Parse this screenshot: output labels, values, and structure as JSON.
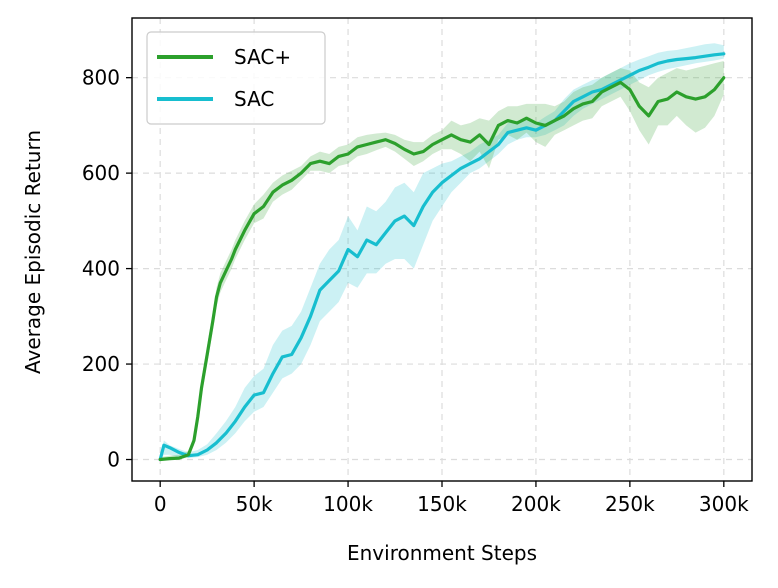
{
  "chart_data": {
    "type": "line",
    "title": "",
    "xlabel": "Environment Steps",
    "ylabel": "Average Episodic Return",
    "xlim": [
      -15000,
      315000
    ],
    "ylim": [
      -45,
      925
    ],
    "grid": true,
    "legend_position": "upper-left",
    "xticks": [
      0,
      50000,
      100000,
      150000,
      200000,
      250000,
      300000
    ],
    "xtick_labels": [
      "0",
      "50k",
      "100k",
      "150k",
      "200k",
      "250k",
      "300k"
    ],
    "yticks": [
      0,
      200,
      400,
      600,
      800
    ],
    "ytick_labels": [
      "0",
      "200",
      "400",
      "600",
      "800"
    ],
    "series": [
      {
        "name": "SAC",
        "color": "#17becf",
        "x": [
          0,
          2000,
          5000,
          10000,
          15000,
          20000,
          25000,
          30000,
          35000,
          40000,
          45000,
          50000,
          55000,
          60000,
          65000,
          70000,
          75000,
          80000,
          85000,
          90000,
          95000,
          100000,
          105000,
          110000,
          115000,
          120000,
          125000,
          130000,
          135000,
          140000,
          145000,
          150000,
          155000,
          160000,
          165000,
          170000,
          175000,
          180000,
          185000,
          190000,
          195000,
          200000,
          205000,
          210000,
          215000,
          220000,
          225000,
          230000,
          235000,
          240000,
          245000,
          250000,
          255000,
          260000,
          265000,
          270000,
          275000,
          280000,
          285000,
          290000,
          295000,
          300000
        ],
        "values": [
          0,
          30,
          25,
          15,
          8,
          10,
          20,
          35,
          55,
          80,
          110,
          135,
          140,
          180,
          215,
          220,
          255,
          300,
          355,
          375,
          395,
          440,
          425,
          460,
          450,
          475,
          500,
          510,
          490,
          530,
          560,
          580,
          595,
          610,
          620,
          630,
          645,
          660,
          685,
          690,
          695,
          690,
          700,
          710,
          730,
          750,
          760,
          770,
          775,
          785,
          795,
          805,
          815,
          822,
          830,
          835,
          838,
          840,
          842,
          845,
          848,
          850
        ],
        "band_low": [
          0,
          10,
          10,
          5,
          3,
          5,
          10,
          20,
          35,
          55,
          80,
          100,
          110,
          140,
          170,
          180,
          200,
          240,
          290,
          310,
          330,
          370,
          360,
          390,
          390,
          410,
          420,
          420,
          400,
          450,
          500,
          530,
          560,
          580,
          600,
          610,
          625,
          640,
          660,
          670,
          675,
          675,
          680,
          690,
          700,
          720,
          735,
          745,
          755,
          765,
          775,
          785,
          795,
          805,
          812,
          818,
          822,
          826,
          830,
          833,
          836,
          840
        ],
        "band_high": [
          5,
          40,
          30,
          22,
          15,
          20,
          32,
          55,
          80,
          110,
          150,
          175,
          190,
          240,
          270,
          280,
          310,
          360,
          410,
          440,
          460,
          510,
          480,
          530,
          520,
          540,
          570,
          580,
          560,
          600,
          610,
          620,
          625,
          635,
          645,
          660,
          670,
          680,
          705,
          710,
          715,
          705,
          718,
          730,
          755,
          775,
          785,
          795,
          800,
          810,
          820,
          830,
          838,
          845,
          852,
          856,
          858,
          862,
          866,
          870,
          872,
          868
        ]
      },
      {
        "name": "SAC+",
        "color": "#2ca02c",
        "x": [
          0,
          5000,
          10000,
          15000,
          18000,
          20000,
          22000,
          25000,
          28000,
          30000,
          32000,
          35000,
          38000,
          40000,
          45000,
          50000,
          55000,
          60000,
          65000,
          70000,
          75000,
          80000,
          85000,
          90000,
          95000,
          100000,
          105000,
          110000,
          115000,
          120000,
          125000,
          130000,
          135000,
          140000,
          145000,
          150000,
          155000,
          160000,
          165000,
          170000,
          175000,
          180000,
          185000,
          190000,
          195000,
          200000,
          205000,
          210000,
          215000,
          220000,
          225000,
          230000,
          235000,
          240000,
          245000,
          250000,
          255000,
          260000,
          265000,
          270000,
          275000,
          280000,
          285000,
          290000,
          295000,
          300000
        ],
        "values": [
          0,
          2,
          3,
          10,
          40,
          90,
          150,
          220,
          290,
          340,
          370,
          395,
          420,
          440,
          480,
          515,
          530,
          560,
          575,
          585,
          600,
          620,
          625,
          620,
          635,
          640,
          655,
          660,
          665,
          670,
          662,
          650,
          640,
          645,
          660,
          670,
          680,
          670,
          665,
          680,
          660,
          700,
          710,
          705,
          715,
          705,
          700,
          710,
          720,
          735,
          745,
          750,
          770,
          780,
          790,
          775,
          740,
          720,
          750,
          755,
          770,
          760,
          755,
          760,
          775,
          800
        ],
        "band_low": [
          0,
          0,
          0,
          5,
          30,
          75,
          130,
          200,
          270,
          320,
          350,
          375,
          400,
          420,
          460,
          495,
          505,
          540,
          555,
          565,
          585,
          605,
          605,
          600,
          615,
          620,
          635,
          640,
          648,
          655,
          645,
          630,
          615,
          625,
          640,
          650,
          650,
          640,
          625,
          645,
          610,
          670,
          680,
          670,
          685,
          665,
          655,
          680,
          690,
          700,
          710,
          715,
          740,
          750,
          760,
          730,
          690,
          660,
          700,
          700,
          720,
          700,
          685,
          695,
          720,
          765
        ],
        "band_high": [
          5,
          8,
          10,
          18,
          50,
          105,
          170,
          240,
          310,
          360,
          390,
          415,
          440,
          460,
          500,
          535,
          555,
          580,
          595,
          605,
          615,
          635,
          645,
          640,
          655,
          660,
          675,
          680,
          683,
          685,
          680,
          670,
          665,
          665,
          680,
          690,
          710,
          700,
          705,
          715,
          710,
          730,
          740,
          740,
          745,
          745,
          745,
          740,
          750,
          770,
          780,
          785,
          800,
          810,
          820,
          815,
          790,
          780,
          800,
          810,
          820,
          815,
          820,
          825,
          830,
          835
        ]
      }
    ],
    "legend": [
      {
        "name": "SAC+",
        "color": "#2ca02c"
      },
      {
        "name": "SAC",
        "color": "#17becf"
      }
    ]
  }
}
